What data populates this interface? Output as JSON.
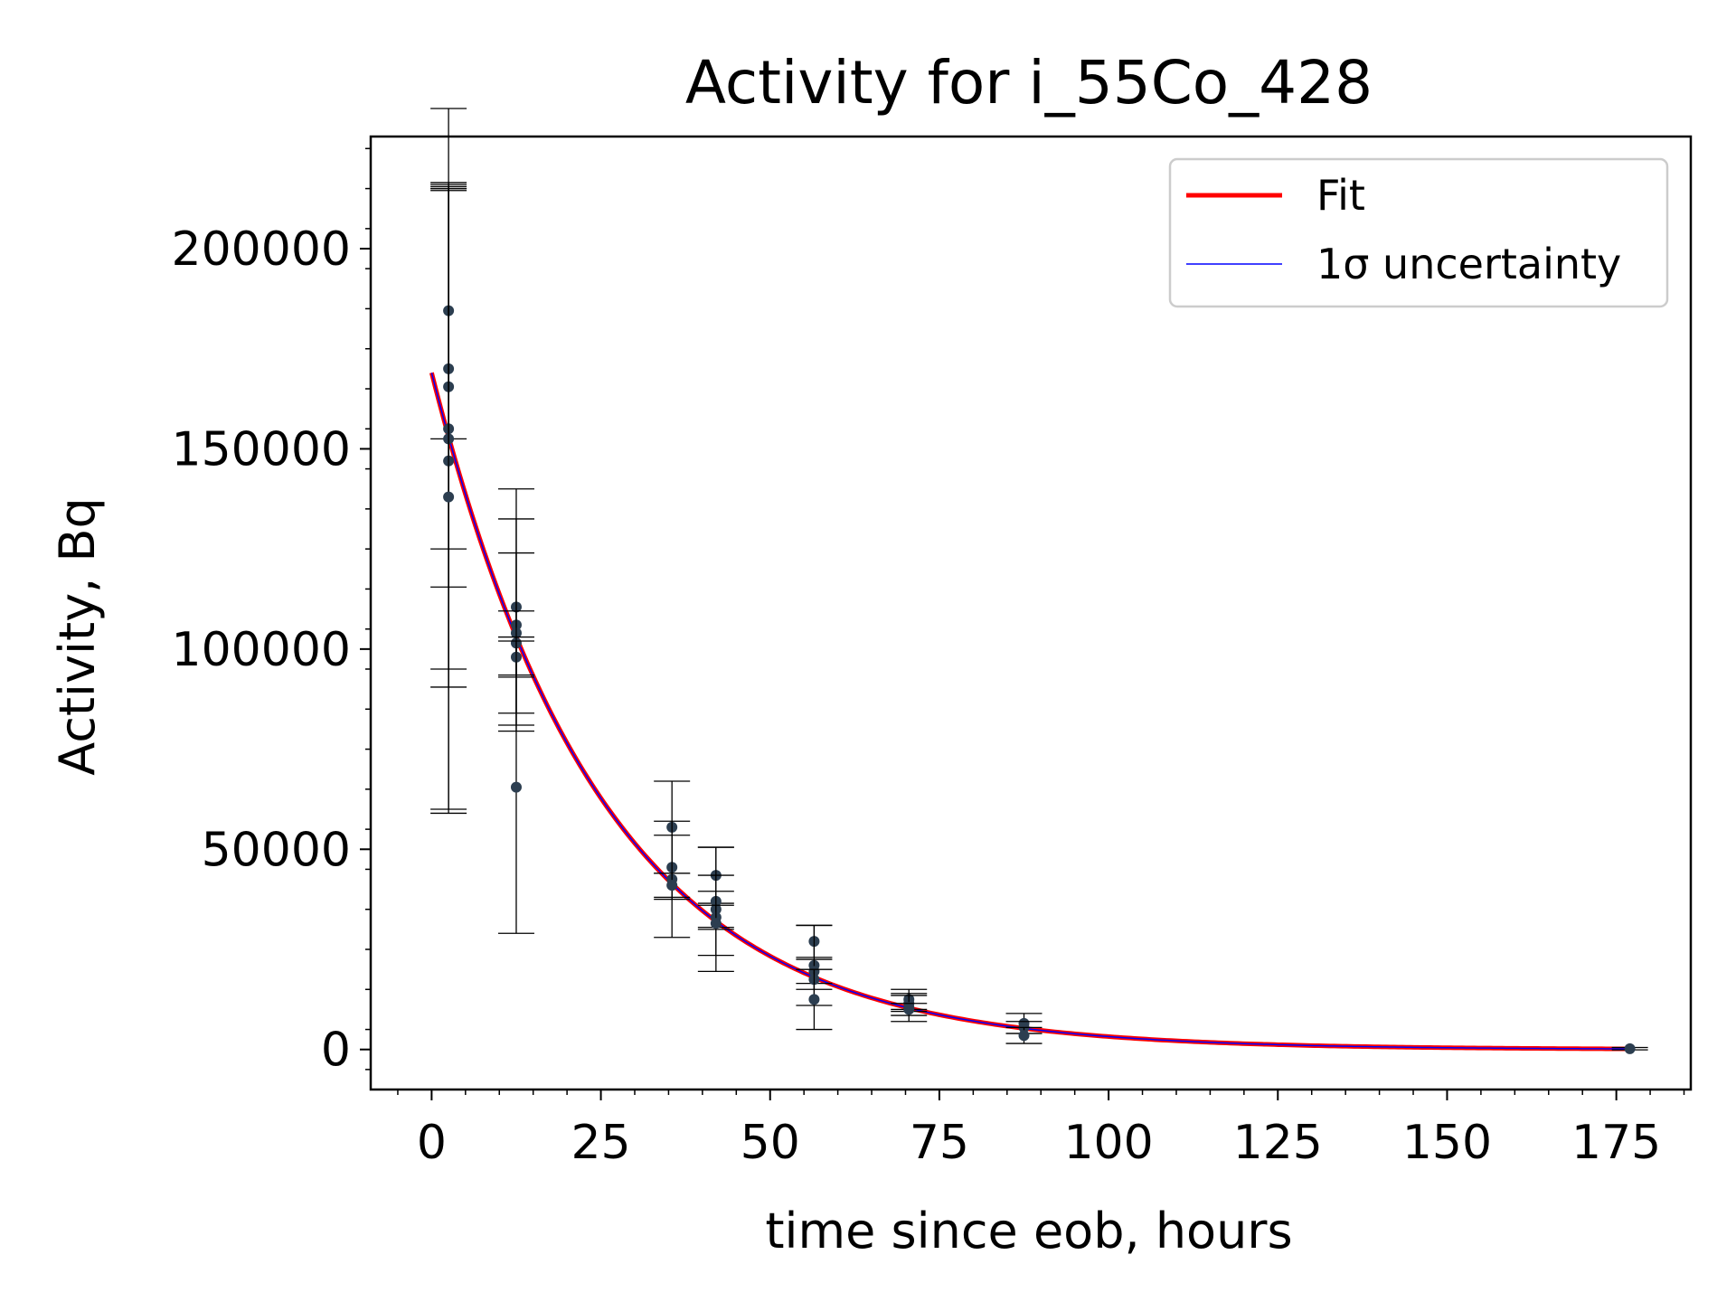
{
  "chart_data": {
    "type": "scatter",
    "title": "Activity for i_55Co_428",
    "xlabel": "time since eob, hours",
    "ylabel": "Activity, Bq",
    "xlim": [
      -9,
      186
    ],
    "ylim": [
      -10000,
      228000
    ],
    "xticks": [
      0,
      25,
      50,
      75,
      100,
      125,
      150,
      175
    ],
    "xtick_labels": [
      "0",
      "25",
      "50",
      "75",
      "100",
      "125",
      "150",
      "175"
    ],
    "yticks": [
      0,
      50000,
      100000,
      150000,
      200000
    ],
    "ytick_labels": [
      "0",
      "50000",
      "100000",
      "150000",
      "200000"
    ],
    "grid": false,
    "legend": {
      "position": "top-right",
      "entries": [
        {
          "label": "Fit",
          "color": "#ff0000"
        },
        {
          "label": "1σ uncertainty",
          "color": "#0000ff"
        }
      ]
    },
    "fit": {
      "model": "exponential decay",
      "A0": 169000,
      "half_life_hours": 17.5,
      "x_range": [
        0,
        177
      ],
      "fit_color": "#ff0000",
      "uncertainty_color": "#0000ff"
    },
    "marker_color": "#2c3e50",
    "series": [
      {
        "name": "measurements",
        "points": [
          {
            "x": 2.5,
            "y": 184500,
            "err": 32000
          },
          {
            "x": 2.5,
            "y": 170000,
            "err": 45000
          },
          {
            "x": 2.5,
            "y": 165500,
            "err": 50000
          },
          {
            "x": 2.5,
            "y": 155000,
            "err": 60000
          },
          {
            "x": 2.5,
            "y": 152500,
            "err": 62000
          },
          {
            "x": 2.5,
            "y": 147000,
            "err": 88000
          },
          {
            "x": 2.5,
            "y": 138000,
            "err": 78000
          },
          {
            "x": 12.5,
            "y": 110500,
            "err": 29500
          },
          {
            "x": 12.5,
            "y": 106000,
            "err": 26500
          },
          {
            "x": 12.5,
            "y": 104000,
            "err": 20000
          },
          {
            "x": 12.5,
            "y": 101500,
            "err": 8000
          },
          {
            "x": 12.5,
            "y": 98000,
            "err": 5000
          },
          {
            "x": 12.5,
            "y": 65500,
            "err": 36500
          },
          {
            "x": 35.5,
            "y": 55500,
            "err": 11500
          },
          {
            "x": 35.5,
            "y": 45500,
            "err": 8000
          },
          {
            "x": 35.5,
            "y": 42500,
            "err": 14500
          },
          {
            "x": 35.5,
            "y": 41000,
            "err": 3000
          },
          {
            "x": 42,
            "y": 43500,
            "err": 7000
          },
          {
            "x": 42,
            "y": 37000,
            "err": 13500
          },
          {
            "x": 42,
            "y": 35000,
            "err": 4500
          },
          {
            "x": 42,
            "y": 33000,
            "err": 3000
          },
          {
            "x": 42,
            "y": 31500,
            "err": 12000
          },
          {
            "x": 56.5,
            "y": 27000,
            "err": 4000
          },
          {
            "x": 56.5,
            "y": 21000,
            "err": 10000
          },
          {
            "x": 56.5,
            "y": 19500,
            "err": 3000
          },
          {
            "x": 56.5,
            "y": 17500,
            "err": 2500
          },
          {
            "x": 56.5,
            "y": 12500,
            "err": 7500
          },
          {
            "x": 70.5,
            "y": 12500,
            "err": 2500
          },
          {
            "x": 70.5,
            "y": 11500,
            "err": 2000
          },
          {
            "x": 70.5,
            "y": 10500,
            "err": 3500
          },
          {
            "x": 70.5,
            "y": 10000,
            "err": 1500
          },
          {
            "x": 87.5,
            "y": 6500,
            "err": 2500
          },
          {
            "x": 87.5,
            "y": 5500,
            "err": 1500
          },
          {
            "x": 87.5,
            "y": 3500,
            "err": 2000
          },
          {
            "x": 177,
            "y": 200,
            "err": 300
          }
        ]
      }
    ]
  }
}
